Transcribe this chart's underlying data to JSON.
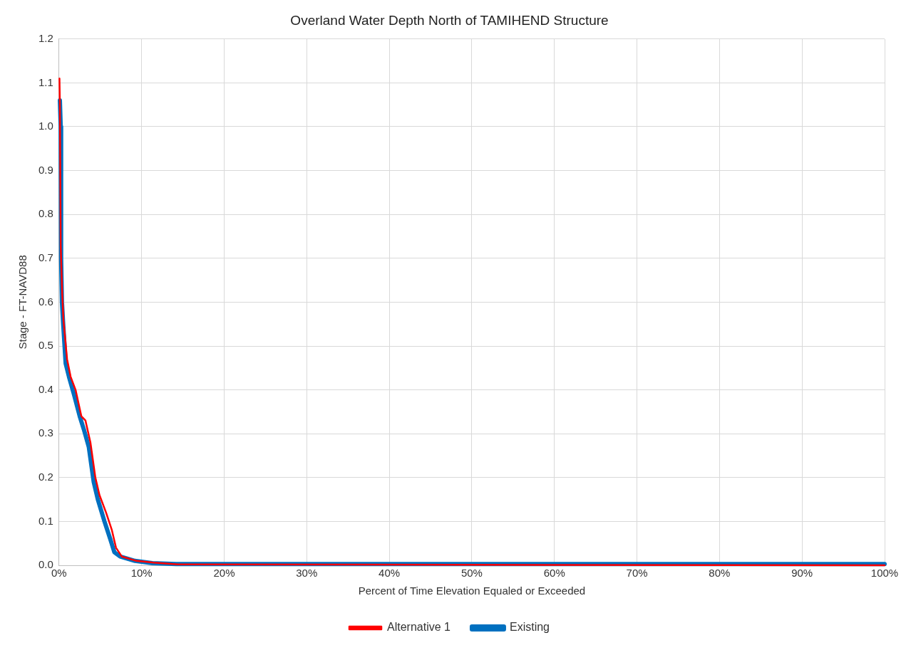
{
  "chart_data": {
    "type": "line",
    "title": "Overland Water Depth North of TAMIHEND Structure",
    "xlabel": "Percent of Time Elevation Equaled or Exceeded",
    "ylabel": "Stage - FT-NAVD88",
    "xlim": [
      0,
      100
    ],
    "xticks": [
      {
        "value": 0,
        "label": "0%"
      },
      {
        "value": 10,
        "label": "10%"
      },
      {
        "value": 20,
        "label": "20%"
      },
      {
        "value": 30,
        "label": "30%"
      },
      {
        "value": 40,
        "label": "40%"
      },
      {
        "value": 50,
        "label": "50%"
      },
      {
        "value": 60,
        "label": "60%"
      },
      {
        "value": 70,
        "label": "70%"
      },
      {
        "value": 80,
        "label": "80%"
      },
      {
        "value": 90,
        "label": "90%"
      },
      {
        "value": 100,
        "label": "100%"
      }
    ],
    "ylim": [
      0,
      1.2
    ],
    "yticks": [
      {
        "value": 0,
        "label": "0.0"
      },
      {
        "value": 0.1,
        "label": "0.1"
      },
      {
        "value": 0.2,
        "label": "0.2"
      },
      {
        "value": 0.3,
        "label": "0.3"
      },
      {
        "value": 0.4,
        "label": "0.4"
      },
      {
        "value": 0.5,
        "label": "0.5"
      },
      {
        "value": 0.6,
        "label": "0.6"
      },
      {
        "value": 0.7,
        "label": "0.7"
      },
      {
        "value": 0.8,
        "label": "0.8"
      },
      {
        "value": 0.9,
        "label": "0.9"
      },
      {
        "value": 1.0,
        "label": "1.0"
      },
      {
        "value": 1.1,
        "label": "1.1"
      },
      {
        "value": 1.2,
        "label": "1.2"
      }
    ],
    "grid": true,
    "legend": "bottom",
    "marker": "none",
    "line_style": "solid",
    "series": [
      {
        "name": "Existing",
        "color": "#0070c0",
        "x": [
          0.1,
          0.2,
          0.25,
          0.35,
          0.5,
          0.8,
          1.2,
          1.8,
          2.5,
          3.0,
          3.6,
          4.2,
          4.7,
          5.5,
          6.2,
          6.7,
          7.4,
          9.2,
          11.3,
          14.2,
          100
        ],
        "values": [
          1.06,
          1.0,
          0.7,
          0.6,
          0.55,
          0.46,
          0.43,
          0.39,
          0.34,
          0.31,
          0.27,
          0.19,
          0.15,
          0.1,
          0.06,
          0.03,
          0.02,
          0.01,
          0.005,
          0.003,
          0.003
        ]
      },
      {
        "name": "Alternative 1",
        "color": "#ff0000",
        "x": [
          0.05,
          0.1,
          0.2,
          0.38,
          0.53,
          0.97,
          1.4,
          2.0,
          2.7,
          3.2,
          3.8,
          4.4,
          4.9,
          5.7,
          6.4,
          6.9,
          7.6,
          9.4,
          11.5,
          14.4,
          100
        ],
        "values": [
          1.11,
          1.05,
          0.73,
          0.62,
          0.56,
          0.47,
          0.43,
          0.4,
          0.34,
          0.33,
          0.28,
          0.2,
          0.16,
          0.12,
          0.08,
          0.04,
          0.02,
          0.01,
          0.006,
          0.002,
          0.0
        ]
      }
    ]
  }
}
